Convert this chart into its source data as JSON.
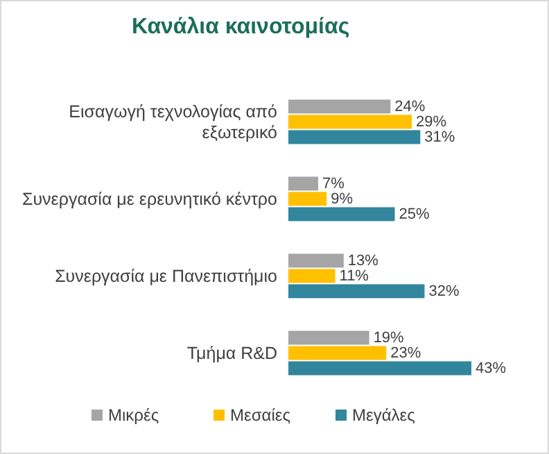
{
  "chart_data": {
    "type": "bar",
    "orientation": "horizontal",
    "title": "Κανάλια καινοτομίας",
    "categories": [
      "Εισαγωγή τεχνολογίας από εξωτερικό",
      "Συνεργασία με ερευνητικό κέντρο",
      "Συνεργασία με Πανεπιστήμιο",
      "Τμήμα R&D"
    ],
    "series": [
      {
        "name": "Μικρές",
        "color": "#a5a5a5",
        "values": [
          24,
          7,
          13,
          19
        ],
        "value_labels": [
          "24%",
          "7%",
          "13%",
          "19%"
        ]
      },
      {
        "name": "Μεσαίες",
        "color": "#ffc000",
        "values": [
          29,
          9,
          11,
          23
        ],
        "value_labels": [
          "29%",
          "9%",
          "11%",
          "23%"
        ]
      },
      {
        "name": "Μεγάλες",
        "color": "#31859c",
        "values": [
          31,
          25,
          32,
          43
        ],
        "value_labels": [
          "31%",
          "25%",
          "32%",
          "43%"
        ]
      }
    ],
    "legend": "bottom"
  }
}
